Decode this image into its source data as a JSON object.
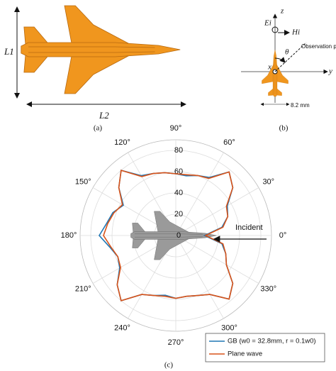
{
  "panel_a": {
    "height_label": "L1",
    "length_label": "L2",
    "caption": "(a)"
  },
  "panel_b": {
    "z_label": "z",
    "e_label": "Ei",
    "h_label": "Hi",
    "theta_label": "θ",
    "observation_label": "Observation point",
    "x_label": "x",
    "y_label": "y",
    "width_label": "8.2 mm",
    "caption": "(b)"
  },
  "chart_data": {
    "type": "polar",
    "theta": [
      0,
      10,
      20,
      30,
      40,
      50,
      60,
      70,
      80,
      90,
      100,
      110,
      120,
      130,
      140,
      150,
      160,
      170,
      180,
      190,
      200,
      210,
      220,
      230,
      240,
      250,
      260,
      270,
      280,
      290,
      300,
      310,
      320,
      330,
      340,
      350
    ],
    "series": [
      {
        "name": "GB (w0 = 32.8mm, r = 0.1w0)",
        "color": "#1f77b4",
        "values": [
          27,
          44,
          52,
          56,
          70,
          78,
          63,
          60,
          57,
          58,
          60,
          62,
          65,
          80,
          70,
          57,
          63,
          66,
          72,
          63,
          58,
          61,
          72,
          80,
          64,
          60,
          57,
          59,
          58,
          60,
          64,
          78,
          70,
          55,
          50,
          44
        ]
      },
      {
        "name": "Plane wave",
        "color": "#d95319",
        "values": [
          28,
          45,
          52,
          55,
          70,
          78,
          62,
          60,
          58,
          58,
          60,
          62,
          64,
          80,
          70,
          58,
          62,
          65,
          68,
          62,
          58,
          60,
          72,
          80,
          64,
          60,
          58,
          59,
          58,
          60,
          64,
          78,
          70,
          55,
          50,
          45
        ]
      }
    ],
    "rlim": [
      0,
      90
    ],
    "rticks": [
      0,
      20,
      40,
      60,
      80
    ],
    "thetaticks": [
      {
        "value": 0,
        "label": "0°"
      },
      {
        "value": 30,
        "label": "30°"
      },
      {
        "value": 60,
        "label": "60°"
      },
      {
        "value": 90,
        "label": "90°"
      },
      {
        "value": 120,
        "label": "120°"
      },
      {
        "value": 150,
        "label": "150°"
      },
      {
        "value": 180,
        "label": "180°"
      },
      {
        "value": 210,
        "label": "210°"
      },
      {
        "value": 240,
        "label": "240°"
      },
      {
        "value": 270,
        "label": "270°"
      },
      {
        "value": 300,
        "label": "300°"
      },
      {
        "value": 330,
        "label": "330°"
      }
    ],
    "annotation": "Incident",
    "caption": "(c)"
  }
}
